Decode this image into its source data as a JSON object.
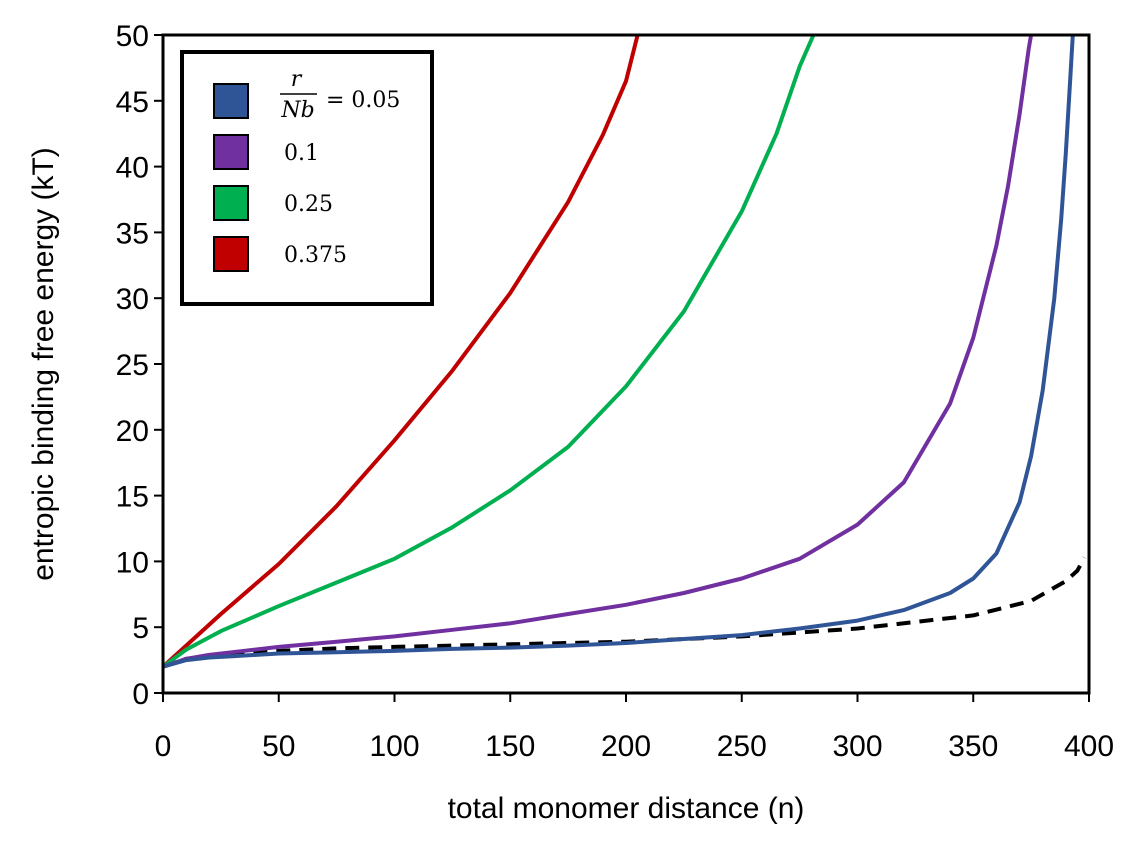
{
  "chart_data": {
    "type": "line",
    "title": "",
    "xlabel": "total monomer distance (n)",
    "ylabel": "entropic binding free energy (kT)",
    "xlim": [
      0,
      400
    ],
    "ylim": [
      0,
      50
    ],
    "xticks": [
      0,
      50,
      100,
      150,
      200,
      250,
      300,
      350,
      400
    ],
    "yticks": [
      0,
      5,
      10,
      15,
      20,
      25,
      30,
      35,
      40,
      45,
      50
    ],
    "grid": false,
    "legend_position": "top-left",
    "legend_title": {
      "numerator": "r",
      "denominator": "Nb",
      "equals": "= 0.05"
    },
    "series": [
      {
        "name": "0.05",
        "color": "#2f5597",
        "style": "solid",
        "x": [
          0,
          10,
          20,
          30,
          50,
          75,
          100,
          125,
          150,
          175,
          200,
          225,
          250,
          275,
          300,
          320,
          340,
          350,
          360,
          370,
          375,
          380,
          385,
          388,
          390,
          392,
          393
        ],
        "y": [
          2.0,
          2.5,
          2.7,
          2.8,
          3.0,
          3.1,
          3.2,
          3.35,
          3.45,
          3.6,
          3.8,
          4.1,
          4.4,
          4.9,
          5.5,
          6.3,
          7.6,
          8.7,
          10.6,
          14.5,
          18.0,
          23.0,
          30.0,
          36.0,
          41.0,
          47.0,
          50.0
        ]
      },
      {
        "name": "0.1",
        "color": "#7030a0",
        "style": "solid",
        "x": [
          0,
          10,
          20,
          30,
          50,
          75,
          100,
          125,
          150,
          175,
          200,
          225,
          250,
          275,
          300,
          320,
          340,
          350,
          360,
          365,
          370,
          372,
          374,
          375
        ],
        "y": [
          2.0,
          2.6,
          2.9,
          3.1,
          3.5,
          3.9,
          4.3,
          4.8,
          5.3,
          6.0,
          6.7,
          7.6,
          8.7,
          10.2,
          12.8,
          16.0,
          22.0,
          27.0,
          34.0,
          38.5,
          44.0,
          46.5,
          49.0,
          50.0
        ]
      },
      {
        "name": "0.25",
        "color": "#00b050",
        "style": "solid",
        "x": [
          0,
          10,
          25,
          50,
          75,
          100,
          125,
          150,
          175,
          200,
          225,
          250,
          265,
          275,
          281
        ],
        "y": [
          2.0,
          3.3,
          4.7,
          6.6,
          8.4,
          10.2,
          12.6,
          15.4,
          18.7,
          23.3,
          29.0,
          36.6,
          42.5,
          47.6,
          50.0
        ]
      },
      {
        "name": "0.375",
        "color": "#c00000",
        "style": "solid",
        "x": [
          0,
          10,
          25,
          50,
          75,
          100,
          125,
          150,
          175,
          190,
          200,
          205
        ],
        "y": [
          2.0,
          3.6,
          6.0,
          9.8,
          14.2,
          19.2,
          24.5,
          30.4,
          37.3,
          42.4,
          46.5,
          50.0
        ]
      },
      {
        "name": "dashed",
        "color": "#000000",
        "style": "dashed",
        "x": [
          0,
          10,
          25,
          50,
          75,
          100,
          150,
          200,
          250,
          300,
          350,
          375,
          390,
          395,
          398
        ],
        "y": [
          2.0,
          2.6,
          2.9,
          3.2,
          3.4,
          3.5,
          3.7,
          3.9,
          4.3,
          4.9,
          5.9,
          7.0,
          8.5,
          9.3,
          10.3
        ]
      }
    ],
    "legend_entries": [
      {
        "label": "0.05",
        "color": "#2f5597"
      },
      {
        "label": "0.1",
        "color": "#7030a0"
      },
      {
        "label": "0.25",
        "color": "#00b050"
      },
      {
        "label": "0.375",
        "color": "#c00000"
      }
    ]
  }
}
